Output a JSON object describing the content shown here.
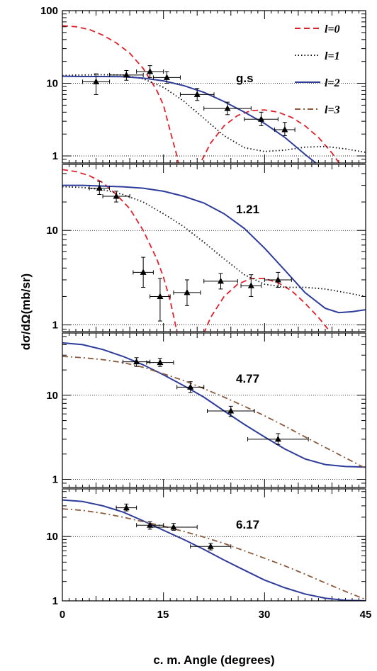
{
  "chart_data": {
    "type": "line",
    "title": "",
    "xlabel": "c. m. Angle (degrees)",
    "ylabel": "dσ/dΩ(mb/sr)",
    "xlim": [
      0,
      45
    ],
    "x_ticks": [
      "0",
      "15",
      "30",
      "45"
    ],
    "y_scale": "log",
    "grid": "dotted lines at 1 and 10",
    "legend": {
      "placement": "top-right",
      "entries": [
        {
          "label": "l=0",
          "color": "#e0202a",
          "dash": "8,5"
        },
        {
          "label": "l=1",
          "color": "#111111",
          "dash": "1.5,3"
        },
        {
          "label": "l=2",
          "color": "#2e3c9a",
          "dash": ""
        },
        {
          "label": "l=3",
          "color": "#8b5a3c",
          "dash": "8,4,2,4"
        }
      ]
    },
    "panels": [
      {
        "label": "g.s",
        "ylim": [
          0.8,
          100
        ],
        "y_ticks": [
          "100",
          "10",
          "1"
        ],
        "series": [
          {
            "name": "l=0",
            "x": [
              0,
              2,
              4,
              6,
              8,
              10,
              12,
              14,
              15,
              16,
              17,
              18,
              19,
              20,
              22,
              24,
              26,
              28,
              30,
              32,
              34,
              36,
              38,
              40,
              42,
              44,
              45
            ],
            "y": [
              62,
              60,
              55,
              46,
              36,
              26,
              16,
              8,
              5,
              2.2,
              1.0,
              0.36,
              0.38,
              0.65,
              1.5,
              2.6,
              3.6,
              4.2,
              4.3,
              4.0,
              3.4,
              2.6,
              1.8,
              1.1,
              0.6,
              0.3,
              0.22
            ]
          },
          {
            "name": "l=1",
            "x": [
              0,
              3,
              6,
              9,
              12,
              15,
              18,
              21,
              24,
              27,
              30,
              33,
              36,
              39,
              42,
              45
            ],
            "y": [
              12.8,
              13,
              13.1,
              13,
              11.5,
              8.8,
              5.7,
              3.3,
              1.9,
              1.3,
              1.15,
              1.2,
              1.32,
              1.35,
              1.25,
              1.12
            ]
          },
          {
            "name": "l=2",
            "x": [
              0,
              3,
              6,
              9,
              12,
              15,
              18,
              21,
              24,
              27,
              30,
              33,
              36,
              38,
              40,
              42,
              44,
              45
            ],
            "y": [
              12.5,
              12.4,
              12.4,
              12.3,
              11.8,
              10.8,
              9.3,
              7.5,
              5.6,
              4,
              2.8,
              1.8,
              1.05,
              0.75,
              0.6,
              0.58,
              0.6,
              0.62
            ]
          }
        ],
        "points": [
          {
            "x": 5.0,
            "y": 10.5,
            "xerr": 2.0,
            "ylo": 7.0,
            "yhi": 13.5
          },
          {
            "x": 9.5,
            "y": 13.0,
            "xerr": 2.5,
            "ylo": 11.0,
            "yhi": 15.0
          },
          {
            "x": 13.0,
            "y": 14.5,
            "xerr": 2.0,
            "ylo": 12.0,
            "yhi": 17.5
          },
          {
            "x": 15.5,
            "y": 12.0,
            "xerr": 2.0,
            "ylo": 10.0,
            "yhi": 14.5
          },
          {
            "x": 20.0,
            "y": 7.0,
            "xerr": 2.5,
            "ylo": 5.8,
            "yhi": 8.5
          },
          {
            "x": 24.5,
            "y": 4.5,
            "xerr": 3.5,
            "ylo": 3.7,
            "yhi": 5.5
          },
          {
            "x": 29.5,
            "y": 3.2,
            "xerr": 2.5,
            "ylo": 2.6,
            "yhi": 4.0
          },
          {
            "x": 33.0,
            "y": 2.3,
            "xerr": 1.5,
            "ylo": 1.9,
            "yhi": 2.9
          }
        ]
      },
      {
        "label": "1.21",
        "ylim": [
          0.85,
          50
        ],
        "y_ticks": [
          "10",
          "1"
        ],
        "series": [
          {
            "name": "l=0",
            "x": [
              0,
              2,
              4,
              6,
              8,
              10,
              12,
              14,
              15,
              16,
              17,
              18,
              19,
              20,
              22,
              24,
              26,
              28,
              30,
              32,
              34,
              36,
              38,
              40,
              42,
              44,
              45
            ],
            "y": [
              44,
              42,
              38,
              32,
              24,
              17,
              10,
              5,
              3.2,
              1.8,
              0.85,
              0.3,
              0.32,
              0.55,
              1.2,
              2,
              2.7,
              3.1,
              3.1,
              2.8,
              2.3,
              1.7,
              1.2,
              0.8,
              0.55,
              0.36,
              0.3
            ]
          },
          {
            "name": "l=1",
            "x": [
              0,
              3,
              6,
              9,
              12,
              15,
              18,
              21,
              24,
              27,
              30,
              33,
              36,
              39,
              42,
              45
            ],
            "y": [
              29,
              28.5,
              27,
              24,
              20,
              15,
              11,
              7.5,
              5,
              3.4,
              2.7,
              2.5,
              2.5,
              2.4,
              2.2,
              2.0
            ]
          },
          {
            "name": "l=2",
            "x": [
              0,
              3,
              6,
              9,
              12,
              15,
              18,
              21,
              24,
              27,
              30,
              33,
              36,
              39,
              41,
              43,
              45
            ],
            "y": [
              30,
              30,
              29.5,
              29,
              28,
              26,
              23,
              19.5,
              15,
              10.5,
              6.5,
              3.8,
              2.2,
              1.5,
              1.35,
              1.38,
              1.45
            ]
          }
        ],
        "points": [
          {
            "x": 5.5,
            "y": 28.0,
            "xerr": 1.5,
            "ylo": 24.0,
            "yhi": 33.0
          },
          {
            "x": 8.0,
            "y": 23.0,
            "xerr": 2.0,
            "ylo": 20.0,
            "yhi": 26.0
          },
          {
            "x": 12.0,
            "y": 3.6,
            "xerr": 1.5,
            "ylo": 2.5,
            "yhi": 5.2
          },
          {
            "x": 14.5,
            "y": 2.0,
            "xerr": 1.5,
            "ylo": 1.1,
            "yhi": 3.1
          },
          {
            "x": 18.5,
            "y": 2.2,
            "xerr": 2.0,
            "ylo": 1.6,
            "yhi": 3.0
          },
          {
            "x": 23.5,
            "y": 2.9,
            "xerr": 2.5,
            "ylo": 2.4,
            "yhi": 3.5
          },
          {
            "x": 28.0,
            "y": 2.6,
            "xerr": 1.5,
            "ylo": 2.0,
            "yhi": 3.4
          },
          {
            "x": 32.0,
            "y": 3.0,
            "xerr": 2.0,
            "ylo": 2.5,
            "yhi": 3.6
          }
        ]
      },
      {
        "label": "4.77",
        "ylim": [
          0.8,
          55
        ],
        "y_ticks": [
          "10",
          "1"
        ],
        "series": [
          {
            "name": "l=2",
            "x": [
              0,
              3,
              6,
              9,
              12,
              15,
              18,
              21,
              24,
              27,
              30,
              33,
              36,
              39,
              42,
              45
            ],
            "y": [
              42,
              40,
              35,
              29,
              23,
              17.5,
              13,
              9.5,
              6.5,
              4.5,
              3.2,
              2.3,
              1.75,
              1.5,
              1.42,
              1.4
            ]
          },
          {
            "name": "l=3",
            "x": [
              0,
              3,
              6,
              9,
              12,
              15,
              18,
              21,
              24,
              27,
              30,
              33,
              36,
              39,
              42,
              45
            ],
            "y": [
              29,
              28,
              26.5,
              24.5,
              21.5,
              18,
              15,
              12,
              9.5,
              7.4,
              5.7,
              4.3,
              3.2,
              2.4,
              1.8,
              1.35
            ]
          }
        ],
        "points": [
          {
            "x": 11.0,
            "y": 25.0,
            "xerr": 2.0,
            "ylo": 22.0,
            "yhi": 28.0
          },
          {
            "x": 14.5,
            "y": 24.5,
            "xerr": 2.0,
            "ylo": 22.0,
            "yhi": 27.5
          },
          {
            "x": 19.0,
            "y": 12.5,
            "xerr": 2.0,
            "ylo": 10.8,
            "yhi": 14.5
          },
          {
            "x": 25.0,
            "y": 6.5,
            "xerr": 3.5,
            "ylo": 5.6,
            "yhi": 7.4
          },
          {
            "x": 32.0,
            "y": 3.0,
            "xerr": 4.5,
            "ylo": 2.6,
            "yhi": 3.5
          }
        ]
      },
      {
        "label": "6.17",
        "ylim": [
          1,
          55
        ],
        "y_ticks": [
          "10",
          "1"
        ],
        "series": [
          {
            "name": "l=2",
            "x": [
              0,
              3,
              6,
              9,
              12,
              15,
              18,
              21,
              24,
              27,
              30,
              33,
              36,
              39,
              42,
              45
            ],
            "y": [
              37,
              35,
              30,
              24,
              17.5,
              12.5,
              9,
              6.3,
              4.3,
              3,
              2.1,
              1.6,
              1.28,
              1.1,
              1.02,
              1.0
            ]
          },
          {
            "name": "l=3",
            "x": [
              0,
              3,
              6,
              9,
              12,
              15,
              18,
              21,
              24,
              27,
              30,
              33,
              36,
              39,
              42,
              45
            ],
            "y": [
              27,
              25.5,
              23,
              20,
              17,
              14.5,
              12,
              9.8,
              7.8,
              6,
              4.6,
              3.5,
              2.6,
              1.9,
              1.4,
              1.05
            ]
          }
        ],
        "points": [
          {
            "x": 9.5,
            "y": 28.0,
            "xerr": 1.5,
            "ylo": 25.0,
            "yhi": 32.0
          },
          {
            "x": 13.0,
            "y": 15.0,
            "xerr": 2.0,
            "ylo": 13.0,
            "yhi": 17.0
          },
          {
            "x": 16.5,
            "y": 14.0,
            "xerr": 3.5,
            "ylo": 12.5,
            "yhi": 16.0
          },
          {
            "x": 22.0,
            "y": 7.0,
            "xerr": 3.0,
            "ylo": 6.2,
            "yhi": 7.8
          }
        ]
      }
    ]
  }
}
